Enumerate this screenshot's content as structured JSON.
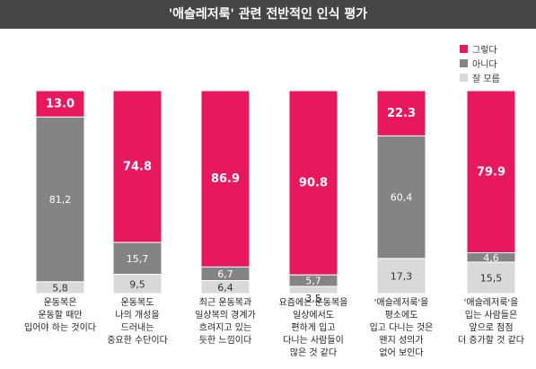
{
  "chart_data": {
    "type": "bar",
    "stacked": true,
    "title": "'애슬레저룩' 관련 전반적인 인식 평가",
    "categories": [
      "운동복은\n운동할 때만\n입어야 하는 것이다",
      "운동복도\n나의 개성을\n드러내는\n중요한 수단이다",
      "최근 운동복과\n일상복의 경계가\n흐려지고 있는\n듯한 느낌이다",
      "요즘에는 운동복을\n일상에서도\n편하게 입고\n다니는 사람들이\n많은 것 같다",
      "'애슬레저룩'을\n평소에도\n입고 다니는 것은\n왠지 성의가\n없어 보인다",
      "'애슬레저룩'을\n입는 사람들은\n앞으로 점점\n더 증가할 것 같다"
    ],
    "series": [
      {
        "name": "그렇다",
        "color": "#e8185f",
        "values": [
          13.0,
          74.8,
          86.9,
          90.8,
          22.3,
          79.9
        ],
        "labels": [
          "13.0",
          "74.8",
          "86.9",
          "90.8",
          "22.3",
          "79.9"
        ]
      },
      {
        "name": "아니다",
        "color": "#848484",
        "values": [
          81.2,
          15.7,
          6.7,
          5.7,
          60.4,
          4.6
        ],
        "labels": [
          "81,2",
          "15,7",
          "6,7",
          "5,7",
          "60,4",
          "4,6"
        ]
      },
      {
        "name": "잘 모름",
        "color": "#d9d9d9",
        "values": [
          5.8,
          9.5,
          6.4,
          3.5,
          17.3,
          15.5
        ],
        "labels": [
          "5,8",
          "9,5",
          "6,4",
          "3,5",
          "17,3",
          "15,5"
        ]
      }
    ],
    "ylim": [
      0,
      100
    ],
    "legend_position": "top-right",
    "grid": false
  }
}
